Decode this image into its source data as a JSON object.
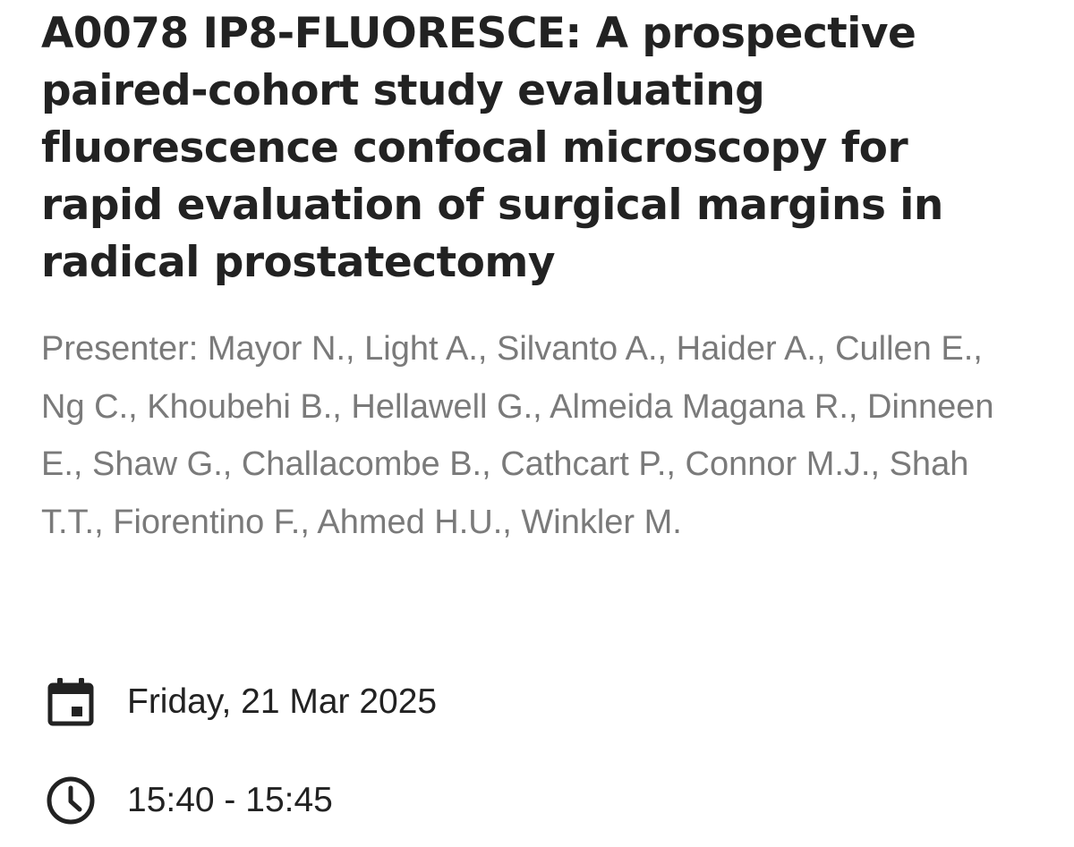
{
  "session": {
    "title": "A0078 IP8-FLUORESCE: A prospective paired-cohort study evaluating fluorescence confocal microscopy for rapid evaluation of surgical margins in radical prostatectomy",
    "presenters": "Presenter: Mayor N., Light A., Silvanto A., Haider A., Cullen E., Ng C., Khoubehi B., Hellawell G., Almeida Magana R., Dinneen E., Shaw G., Challacombe B., Cathcart P., Connor M.J., Shah T.T., Fiorentino F., Ahmed H.U., Winkler M.",
    "date": {
      "icon": "calendar-icon",
      "text": "Friday, 21 Mar 2025"
    },
    "time": {
      "icon": "clock-icon",
      "text": "15:40 - 15:45"
    }
  },
  "colors": {
    "title": "#222222",
    "presenters": "#7a7a7a",
    "icon": "#222222",
    "background": "#ffffff"
  }
}
